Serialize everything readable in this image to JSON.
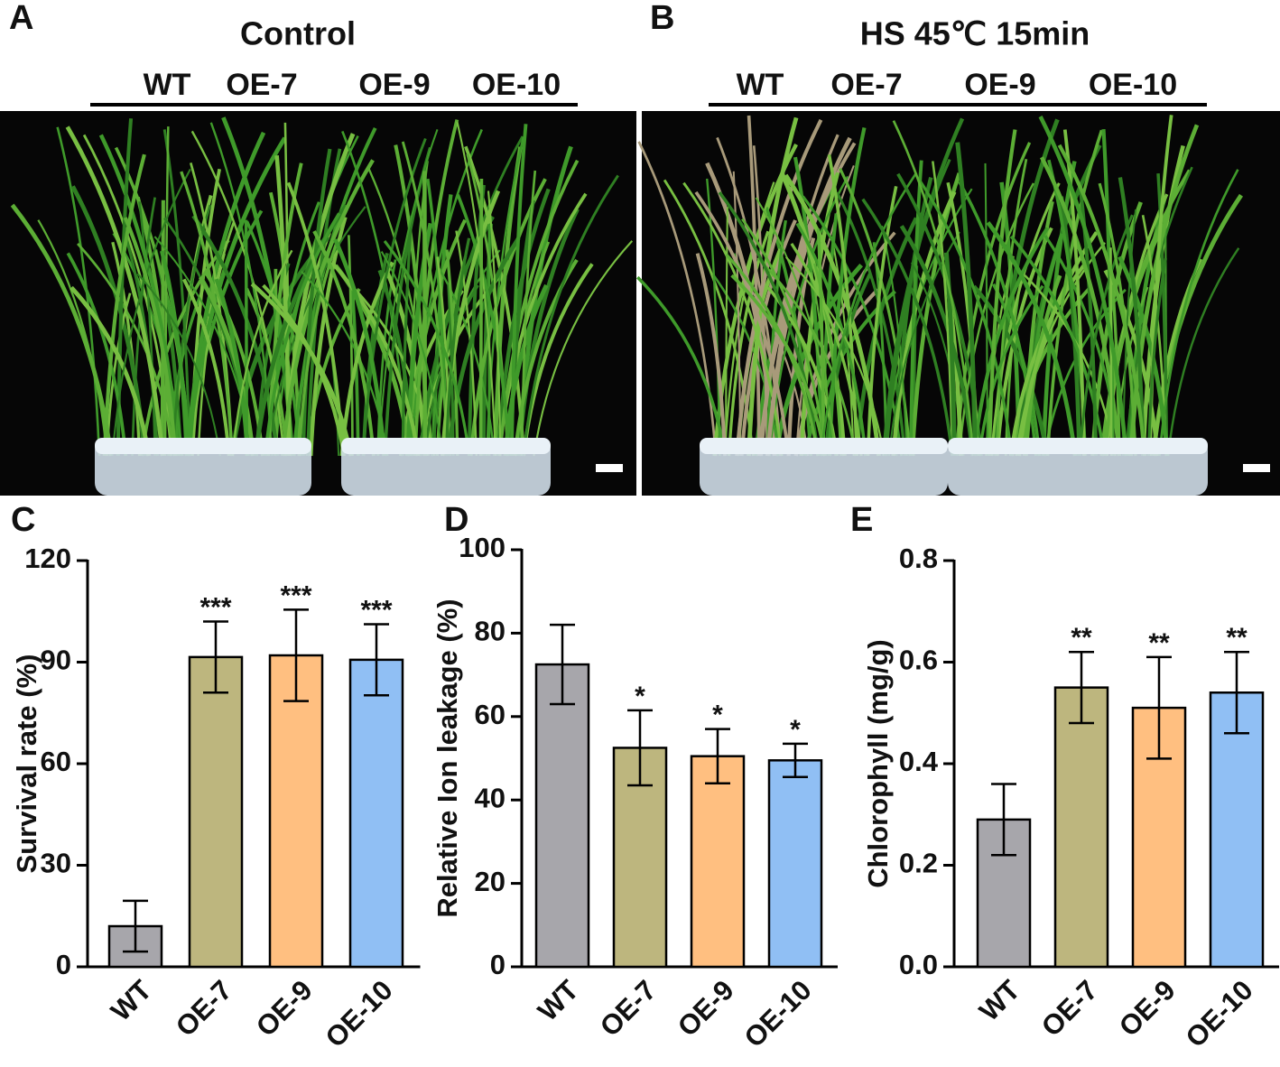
{
  "photos": [
    {
      "panel": "A",
      "title": "Control",
      "labels": [
        "WT",
        "OE-7",
        "OE-9",
        "OE-10"
      ]
    },
    {
      "panel": "B",
      "title": "HS 45℃ 15min",
      "labels": [
        "WT",
        "OE-7",
        "OE-9",
        "OE-10"
      ]
    }
  ],
  "chart_data": [
    {
      "type": "bar",
      "panel": "C",
      "y_label": "Survival rate (%)",
      "categories": [
        "WT",
        "OE-7",
        "OE-9",
        "OE-10"
      ],
      "values": [
        12,
        91.5,
        92,
        90.7
      ],
      "errors": [
        7.5,
        10.5,
        13.5,
        10.5
      ],
      "colors": [
        "#a7a6ab",
        "#bdb67e",
        "#ffbf80",
        "#90bff4"
      ],
      "annotations": [
        null,
        "***",
        "***",
        "***"
      ],
      "ylim": [
        0,
        120
      ],
      "yticks": [
        0,
        30,
        60,
        90,
        120
      ]
    },
    {
      "type": "bar",
      "panel": "D",
      "y_label": "Relative Ion leakage (%)",
      "categories": [
        "WT",
        "OE-7",
        "OE-9",
        "OE-10"
      ],
      "values": [
        72.5,
        52.5,
        50.5,
        49.5
      ],
      "errors": [
        9.5,
        9,
        6.5,
        4
      ],
      "colors": [
        "#a7a6ab",
        "#bdb67e",
        "#ffbf80",
        "#90bff4"
      ],
      "annotations": [
        null,
        "*",
        "*",
        "*"
      ],
      "ylim": [
        0,
        100
      ],
      "yticks": [
        0,
        20,
        40,
        60,
        80,
        100
      ]
    },
    {
      "type": "bar",
      "panel": "E",
      "y_label": "Chlorophyll (mg/g)",
      "categories": [
        "WT",
        "OE-7",
        "OE-9",
        "OE-10"
      ],
      "values": [
        0.29,
        0.55,
        0.51,
        0.54
      ],
      "errors": [
        0.07,
        0.07,
        0.1,
        0.08
      ],
      "colors": [
        "#a7a6ab",
        "#bdb67e",
        "#ffbf80",
        "#90bff4"
      ],
      "annotations": [
        null,
        "**",
        "**",
        "**"
      ],
      "ylim": [
        0,
        0.8
      ],
      "yticks": [
        {
          "value": 0,
          "label": "0.0"
        },
        0.2,
        0.4,
        0.6,
        0.8
      ]
    }
  ]
}
